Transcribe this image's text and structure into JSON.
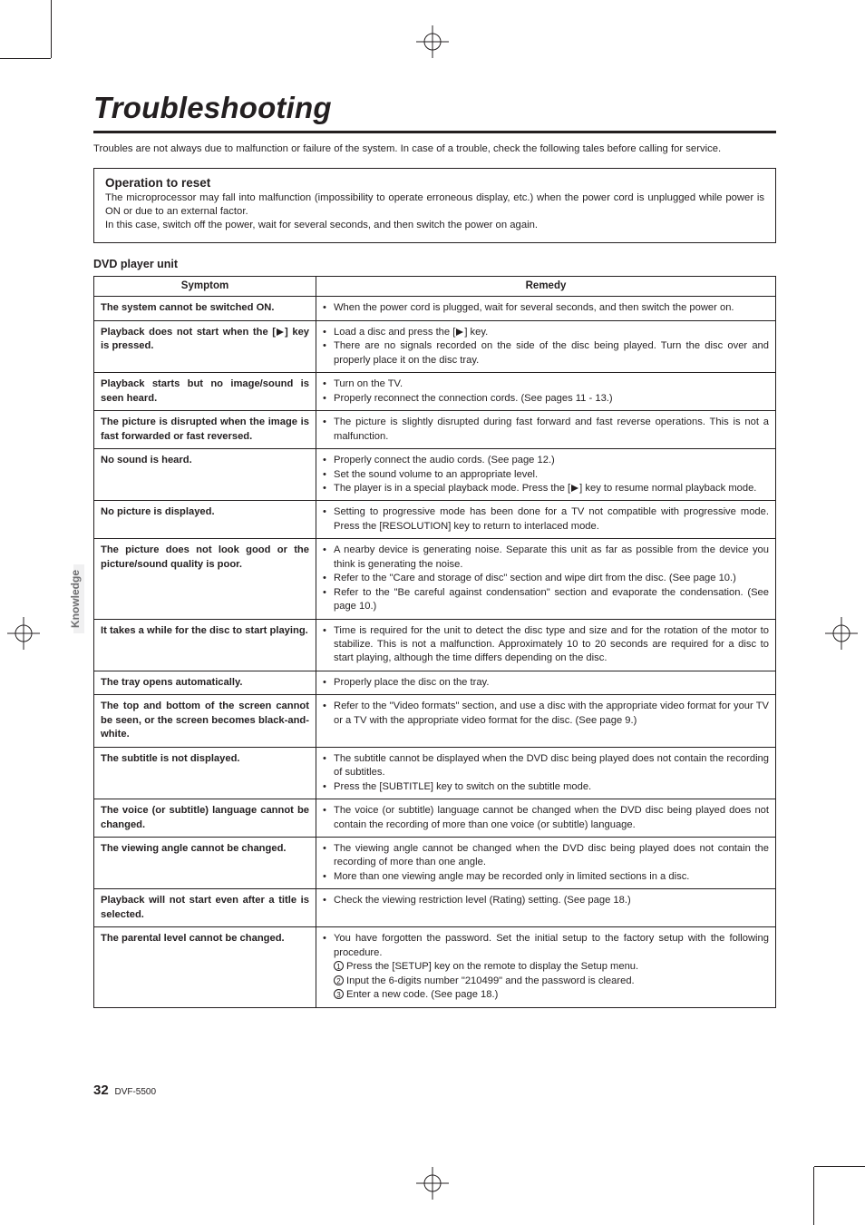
{
  "page": {
    "title": "Troubleshooting",
    "intro": "Troubles are not always due to malfunction or failure of the system. In case of a trouble, check the following tales before calling for service.",
    "side_tab": "Knowledge",
    "page_number": "32",
    "model": "DVF-5500"
  },
  "reset_box": {
    "heading": "Operation to reset",
    "line1": "The microprocessor may fall into malfunction (impossibility to operate erroneous display, etc.) when the power cord is unplugged while power is ON or due to an external factor.",
    "line2": "In this case, switch off the power, wait for several seconds, and then switch the power on again."
  },
  "table": {
    "section_label": "DVD player unit",
    "head_symptom": "Symptom",
    "head_remedy": "Remedy",
    "rows": [
      {
        "symptom": "The system cannot be switched ON.",
        "remedy": [
          "When the power cord is plugged, wait for several seconds, and then switch the power on."
        ]
      },
      {
        "symptom_html": "Playback does not start when the [PLAY] key is pressed.",
        "remedy": [
          "Load a disc and press the [PLAY] key.",
          "There are no signals recorded on the side of the disc being played. Turn the disc over and properly place it on the disc tray."
        ]
      },
      {
        "symptom": "Playback starts but no image/sound is seen heard.",
        "remedy": [
          "Turn on the TV.",
          "Properly reconnect the connection cords. (See pages 11 - 13.)"
        ]
      },
      {
        "symptom": "The picture is disrupted when the image is fast forwarded or fast reversed.",
        "remedy": [
          "The picture is slightly disrupted during fast forward and fast reverse operations. This is not a malfunction."
        ]
      },
      {
        "symptom": "No sound is heard.",
        "remedy": [
          "Properly connect the audio cords. (See page 12.)",
          "Set the sound volume to an appropriate level.",
          "The player is in a special playback mode. Press the [PLAY] key to resume normal playback mode."
        ]
      },
      {
        "symptom": "No picture is displayed.",
        "remedy": [
          "Setting to progressive mode has been done for a TV not compatible with progressive mode. Press the [RESOLUTION] key to return to interlaced mode."
        ]
      },
      {
        "symptom": "The picture does not look good or the picture/sound quality is poor.",
        "remedy": [
          "A nearby device is generating noise. Separate this unit as far as possible from the device you think is generating the noise.",
          "Refer to the \"Care and storage of disc\" section and wipe dirt from the disc. (See page 10.)",
          "Refer to the \"Be careful against condensation\" section and evaporate the condensation. (See page 10.)"
        ]
      },
      {
        "symptom": "It takes a while for the disc to start playing.",
        "remedy": [
          "Time is required for the unit to detect the disc type and size and for the rotation of the motor to stabilize. This is not a malfunction. Approximately 10 to 20 seconds are required for a disc to start playing, although the time differs depending on the disc."
        ]
      },
      {
        "symptom": "The tray opens automatically.",
        "remedy": [
          "Properly place the disc on the tray."
        ]
      },
      {
        "symptom": "The top and bottom of the screen cannot be seen, or the screen becomes black-and-white.",
        "remedy": [
          "Refer to the \"Video formats\" section, and use a disc with the appropriate video format for your TV or a TV with the appropriate video format for the disc. (See page 9.)"
        ]
      },
      {
        "symptom": "The subtitle is not displayed.",
        "remedy": [
          "The subtitle cannot be displayed when the DVD disc being played does not contain the recording of subtitles.",
          "Press the [SUBTITLE] key to switch on the subtitle mode."
        ]
      },
      {
        "symptom": "The voice (or subtitle) language cannot be changed.",
        "remedy": [
          "The voice (or subtitle) language cannot be changed when the DVD disc being played does not contain the recording of more than one voice (or subtitle) language."
        ]
      },
      {
        "symptom": "The viewing angle cannot be changed.",
        "remedy": [
          "The viewing angle cannot be changed when the DVD disc being played does not contain the recording of more than one angle.",
          "More than one viewing angle may be recorded only in limited sections in a disc."
        ]
      },
      {
        "symptom": "Playback will not start even after a title is selected.",
        "remedy": [
          "Check the viewing restriction level (Rating) setting. (See page 18.)"
        ]
      },
      {
        "symptom": "The parental level cannot be changed.",
        "remedy_special": {
          "lead": "You have forgotten the password. Set the initial setup to the factory setup with the following procedure.",
          "steps": [
            "Press the [SETUP] key on the remote to display the Setup menu.",
            "Input the 6-digits number \"210499\" and the password is cleared.",
            "Enter a new code. (See page 18.)"
          ]
        }
      }
    ]
  }
}
